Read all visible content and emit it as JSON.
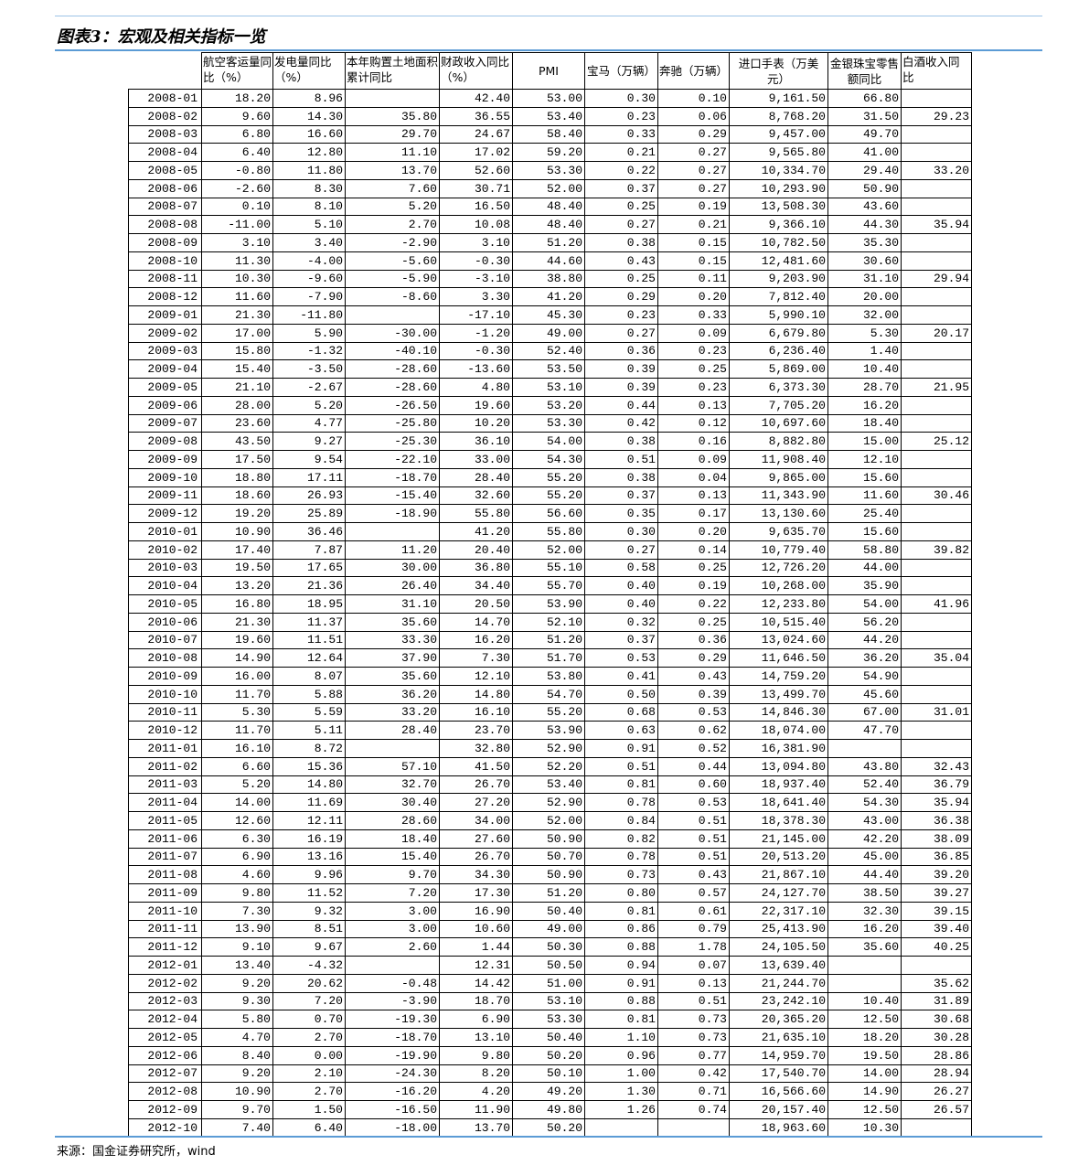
{
  "title": "图表3：宏观及相关指标一览",
  "source": "来源：国金证券研究所，wind",
  "columns": [
    "",
    "航空客运量同比（%）",
    "发电量同比（%）",
    "本年购置土地面积累计同比",
    "财政收入同比（%）",
    "PMI",
    "宝马（万辆）",
    "奔驰（万辆）",
    "进口手表（万美元）",
    "金银珠宝零售额同比",
    "白酒收入同比"
  ],
  "rows": [
    [
      "2008-01",
      "18.20",
      "8.96",
      null,
      "42.40",
      "53.00",
      "0.30",
      "0.10",
      "9,161.50",
      "66.80",
      null
    ],
    [
      "2008-02",
      "9.60",
      "14.30",
      "35.80",
      "36.55",
      "53.40",
      "0.23",
      "0.06",
      "8,768.20",
      "31.50",
      "29.23"
    ],
    [
      "2008-03",
      "6.80",
      "16.60",
      "29.70",
      "24.67",
      "58.40",
      "0.33",
      "0.29",
      "9,457.00",
      "49.70",
      null
    ],
    [
      "2008-04",
      "6.40",
      "12.80",
      "11.10",
      "17.02",
      "59.20",
      "0.21",
      "0.27",
      "9,565.80",
      "41.00",
      null
    ],
    [
      "2008-05",
      "-0.80",
      "11.80",
      "13.70",
      "52.60",
      "53.30",
      "0.22",
      "0.27",
      "10,334.70",
      "29.40",
      "33.20"
    ],
    [
      "2008-06",
      "-2.60",
      "8.30",
      "7.60",
      "30.71",
      "52.00",
      "0.37",
      "0.27",
      "10,293.90",
      "50.90",
      null
    ],
    [
      "2008-07",
      "0.10",
      "8.10",
      "5.20",
      "16.50",
      "48.40",
      "0.25",
      "0.19",
      "13,508.30",
      "43.60",
      null
    ],
    [
      "2008-08",
      "-11.00",
      "5.10",
      "2.70",
      "10.08",
      "48.40",
      "0.27",
      "0.21",
      "9,366.10",
      "44.30",
      "35.94"
    ],
    [
      "2008-09",
      "3.10",
      "3.40",
      "-2.90",
      "3.10",
      "51.20",
      "0.38",
      "0.15",
      "10,782.50",
      "35.30",
      null
    ],
    [
      "2008-10",
      "11.30",
      "-4.00",
      "-5.60",
      "-0.30",
      "44.60",
      "0.43",
      "0.15",
      "12,481.60",
      "30.60",
      null
    ],
    [
      "2008-11",
      "10.30",
      "-9.60",
      "-5.90",
      "-3.10",
      "38.80",
      "0.25",
      "0.11",
      "9,203.90",
      "31.10",
      "29.94"
    ],
    [
      "2008-12",
      "11.60",
      "-7.90",
      "-8.60",
      "3.30",
      "41.20",
      "0.29",
      "0.20",
      "7,812.40",
      "20.00",
      null
    ],
    [
      "2009-01",
      "21.30",
      "-11.80",
      null,
      "-17.10",
      "45.30",
      "0.23",
      "0.33",
      "5,990.10",
      "32.00",
      null
    ],
    [
      "2009-02",
      "17.00",
      "5.90",
      "-30.00",
      "-1.20",
      "49.00",
      "0.27",
      "0.09",
      "6,679.80",
      "5.30",
      "20.17"
    ],
    [
      "2009-03",
      "15.80",
      "-1.32",
      "-40.10",
      "-0.30",
      "52.40",
      "0.36",
      "0.23",
      "6,236.40",
      "1.40",
      null
    ],
    [
      "2009-04",
      "15.40",
      "-3.50",
      "-28.60",
      "-13.60",
      "53.50",
      "0.39",
      "0.25",
      "5,869.00",
      "10.40",
      null
    ],
    [
      "2009-05",
      "21.10",
      "-2.67",
      "-28.60",
      "4.80",
      "53.10",
      "0.39",
      "0.23",
      "6,373.30",
      "28.70",
      "21.95"
    ],
    [
      "2009-06",
      "28.00",
      "5.20",
      "-26.50",
      "19.60",
      "53.20",
      "0.44",
      "0.13",
      "7,705.20",
      "16.20",
      null
    ],
    [
      "2009-07",
      "23.60",
      "4.77",
      "-25.80",
      "10.20",
      "53.30",
      "0.42",
      "0.12",
      "10,697.60",
      "18.40",
      null
    ],
    [
      "2009-08",
      "43.50",
      "9.27",
      "-25.30",
      "36.10",
      "54.00",
      "0.38",
      "0.16",
      "8,882.80",
      "15.00",
      "25.12"
    ],
    [
      "2009-09",
      "17.50",
      "9.54",
      "-22.10",
      "33.00",
      "54.30",
      "0.51",
      "0.09",
      "11,908.40",
      "12.10",
      null
    ],
    [
      "2009-10",
      "18.80",
      "17.11",
      "-18.70",
      "28.40",
      "55.20",
      "0.38",
      "0.04",
      "9,865.00",
      "15.60",
      null
    ],
    [
      "2009-11",
      "18.60",
      "26.93",
      "-15.40",
      "32.60",
      "55.20",
      "0.37",
      "0.13",
      "11,343.90",
      "11.60",
      "30.46"
    ],
    [
      "2009-12",
      "19.20",
      "25.89",
      "-18.90",
      "55.80",
      "56.60",
      "0.35",
      "0.17",
      "13,130.60",
      "25.40",
      null
    ],
    [
      "2010-01",
      "10.90",
      "36.46",
      null,
      "41.20",
      "55.80",
      "0.30",
      "0.20",
      "9,635.70",
      "15.60",
      null
    ],
    [
      "2010-02",
      "17.40",
      "7.87",
      "11.20",
      "20.40",
      "52.00",
      "0.27",
      "0.14",
      "10,779.40",
      "58.80",
      "39.82"
    ],
    [
      "2010-03",
      "19.50",
      "17.65",
      "30.00",
      "36.80",
      "55.10",
      "0.58",
      "0.25",
      "12,726.20",
      "44.00",
      null
    ],
    [
      "2010-04",
      "13.20",
      "21.36",
      "26.40",
      "34.40",
      "55.70",
      "0.40",
      "0.19",
      "10,268.00",
      "35.90",
      null
    ],
    [
      "2010-05",
      "16.80",
      "18.95",
      "31.10",
      "20.50",
      "53.90",
      "0.40",
      "0.22",
      "12,233.80",
      "54.00",
      "41.96"
    ],
    [
      "2010-06",
      "21.30",
      "11.37",
      "35.60",
      "14.70",
      "52.10",
      "0.32",
      "0.25",
      "10,515.40",
      "56.20",
      null
    ],
    [
      "2010-07",
      "19.60",
      "11.51",
      "33.30",
      "16.20",
      "51.20",
      "0.37",
      "0.36",
      "13,024.60",
      "44.20",
      null
    ],
    [
      "2010-08",
      "14.90",
      "12.64",
      "37.90",
      "7.30",
      "51.70",
      "0.53",
      "0.29",
      "11,646.50",
      "36.20",
      "35.04"
    ],
    [
      "2010-09",
      "16.00",
      "8.07",
      "35.60",
      "12.10",
      "53.80",
      "0.41",
      "0.43",
      "14,759.20",
      "54.90",
      null
    ],
    [
      "2010-10",
      "11.70",
      "5.88",
      "36.20",
      "14.80",
      "54.70",
      "0.50",
      "0.39",
      "13,499.70",
      "45.60",
      null
    ],
    [
      "2010-11",
      "5.30",
      "5.59",
      "33.20",
      "16.10",
      "55.20",
      "0.68",
      "0.53",
      "14,846.30",
      "67.00",
      "31.01"
    ],
    [
      "2010-12",
      "11.70",
      "5.11",
      "28.40",
      "23.70",
      "53.90",
      "0.63",
      "0.62",
      "18,074.00",
      "47.70",
      null
    ],
    [
      "2011-01",
      "16.10",
      "8.72",
      null,
      "32.80",
      "52.90",
      "0.91",
      "0.52",
      "16,381.90",
      null,
      null
    ],
    [
      "2011-02",
      "6.60",
      "15.36",
      "57.10",
      "41.50",
      "52.20",
      "0.51",
      "0.44",
      "13,094.80",
      "43.80",
      "32.43"
    ],
    [
      "2011-03",
      "5.20",
      "14.80",
      "32.70",
      "26.70",
      "53.40",
      "0.81",
      "0.60",
      "18,937.40",
      "52.40",
      "36.79"
    ],
    [
      "2011-04",
      "14.00",
      "11.69",
      "30.40",
      "27.20",
      "52.90",
      "0.78",
      "0.53",
      "18,641.40",
      "54.30",
      "35.94"
    ],
    [
      "2011-05",
      "12.60",
      "12.11",
      "28.60",
      "34.00",
      "52.00",
      "0.84",
      "0.51",
      "18,378.30",
      "43.00",
      "36.38"
    ],
    [
      "2011-06",
      "6.30",
      "16.19",
      "18.40",
      "27.60",
      "50.90",
      "0.82",
      "0.51",
      "21,145.00",
      "42.20",
      "38.09"
    ],
    [
      "2011-07",
      "6.90",
      "13.16",
      "15.40",
      "26.70",
      "50.70",
      "0.78",
      "0.51",
      "20,513.20",
      "45.00",
      "36.85"
    ],
    [
      "2011-08",
      "4.60",
      "9.96",
      "9.70",
      "34.30",
      "50.90",
      "0.73",
      "0.43",
      "21,867.10",
      "44.40",
      "39.20"
    ],
    [
      "2011-09",
      "9.80",
      "11.52",
      "7.20",
      "17.30",
      "51.20",
      "0.80",
      "0.57",
      "24,127.70",
      "38.50",
      "39.27"
    ],
    [
      "2011-10",
      "7.30",
      "9.32",
      "3.00",
      "16.90",
      "50.40",
      "0.81",
      "0.61",
      "22,317.10",
      "32.30",
      "39.15"
    ],
    [
      "2011-11",
      "13.90",
      "8.51",
      "3.00",
      "10.60",
      "49.00",
      "0.86",
      "0.79",
      "25,413.90",
      "16.20",
      "39.40"
    ],
    [
      "2011-12",
      "9.10",
      "9.67",
      "2.60",
      "1.44",
      "50.30",
      "0.88",
      "1.78",
      "24,105.50",
      "35.60",
      "40.25"
    ],
    [
      "2012-01",
      "13.40",
      "-4.32",
      null,
      "12.31",
      "50.50",
      "0.94",
      "0.07",
      "13,639.40",
      null,
      null
    ],
    [
      "2012-02",
      "9.20",
      "20.62",
      "-0.48",
      "14.42",
      "51.00",
      "0.91",
      "0.13",
      "21,244.70",
      null,
      "35.62"
    ],
    [
      "2012-03",
      "9.30",
      "7.20",
      "-3.90",
      "18.70",
      "53.10",
      "0.88",
      "0.51",
      "23,242.10",
      "10.40",
      "31.89"
    ],
    [
      "2012-04",
      "5.80",
      "0.70",
      "-19.30",
      "6.90",
      "53.30",
      "0.81",
      "0.73",
      "20,365.20",
      "12.50",
      "30.68"
    ],
    [
      "2012-05",
      "4.70",
      "2.70",
      "-18.70",
      "13.10",
      "50.40",
      "1.10",
      "0.73",
      "21,635.10",
      "18.20",
      "30.28"
    ],
    [
      "2012-06",
      "8.40",
      "0.00",
      "-19.90",
      "9.80",
      "50.20",
      "0.96",
      "0.77",
      "14,959.70",
      "19.50",
      "28.86"
    ],
    [
      "2012-07",
      "9.20",
      "2.10",
      "-24.30",
      "8.20",
      "50.10",
      "1.00",
      "0.42",
      "17,540.70",
      "14.00",
      "28.94"
    ],
    [
      "2012-08",
      "10.90",
      "2.70",
      "-16.20",
      "4.20",
      "49.20",
      "1.30",
      "0.71",
      "16,566.60",
      "14.90",
      "26.27"
    ],
    [
      "2012-09",
      "9.70",
      "1.50",
      "-16.50",
      "11.90",
      "49.80",
      "1.26",
      "0.74",
      "20,157.40",
      "12.50",
      "26.57"
    ],
    [
      "2012-10",
      "7.40",
      "6.40",
      "-18.00",
      "13.70",
      "50.20",
      null,
      null,
      "18,963.60",
      "10.30",
      null
    ]
  ]
}
